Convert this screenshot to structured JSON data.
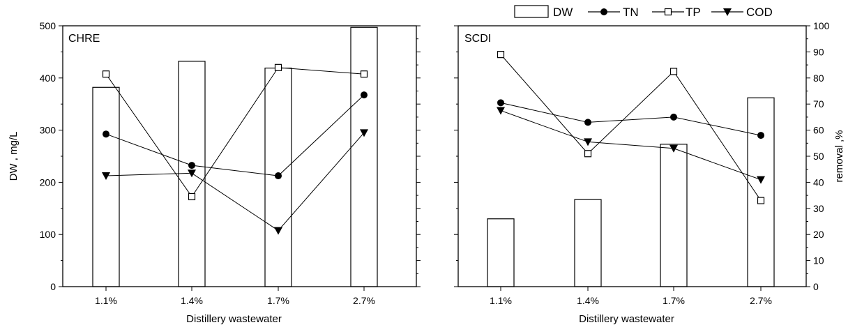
{
  "chart_data": [
    {
      "type": "bar+line",
      "panel_label": "CHRE",
      "categories": [
        "1.1%",
        "1.4%",
        "1.7%",
        "2.7%"
      ],
      "xlabel": "Distillery wastewater",
      "ylabel": "DW , mg/L",
      "ylim": [
        0,
        500
      ],
      "yticks": [
        "0",
        "100",
        "200",
        "300",
        "400",
        "500"
      ],
      "y2lim": [
        0,
        100
      ],
      "bars": {
        "name": "DW",
        "values": [
          382,
          432,
          419,
          497
        ]
      },
      "series": [
        {
          "name": "TN",
          "marker": "circle",
          "values": [
            58.5,
            46.5,
            42.5,
            73.5
          ]
        },
        {
          "name": "TP",
          "marker": "square",
          "values": [
            81.5,
            34.5,
            84.0,
            81.5
          ]
        },
        {
          "name": "COD",
          "marker": "triangle-down",
          "values": [
            42.5,
            43.5,
            21.5,
            59.0
          ]
        }
      ]
    },
    {
      "type": "bar+line",
      "panel_label": "SCDI",
      "categories": [
        "1.1%",
        "1.4%",
        "1.7%",
        "2.7%"
      ],
      "xlabel": "Distillery wastewater",
      "ylim": [
        0,
        500
      ],
      "y2label": "removal ,%",
      "y2lim": [
        0,
        100
      ],
      "y2ticks": [
        "0",
        "10",
        "20",
        "30",
        "40",
        "50",
        "60",
        "70",
        "80",
        "90",
        "100"
      ],
      "bars": {
        "name": "DW",
        "values": [
          130,
          167,
          273,
          362
        ]
      },
      "series": [
        {
          "name": "TN",
          "marker": "circle",
          "values": [
            70.5,
            63.0,
            65.0,
            58.0
          ]
        },
        {
          "name": "TP",
          "marker": "square",
          "values": [
            89.0,
            51.0,
            82.5,
            33.0
          ]
        },
        {
          "name": "COD",
          "marker": "triangle-down",
          "values": [
            67.5,
            55.5,
            53.0,
            41.0
          ]
        }
      ]
    }
  ],
  "legend": {
    "position": "top-right",
    "items": [
      {
        "label": "DW",
        "marker": "bar"
      },
      {
        "label": "TN",
        "marker": "circle"
      },
      {
        "label": "TP",
        "marker": "square"
      },
      {
        "label": "COD",
        "marker": "triangle-down"
      }
    ]
  },
  "colors": {
    "ink": "#000000",
    "fill": "#ffffff"
  }
}
